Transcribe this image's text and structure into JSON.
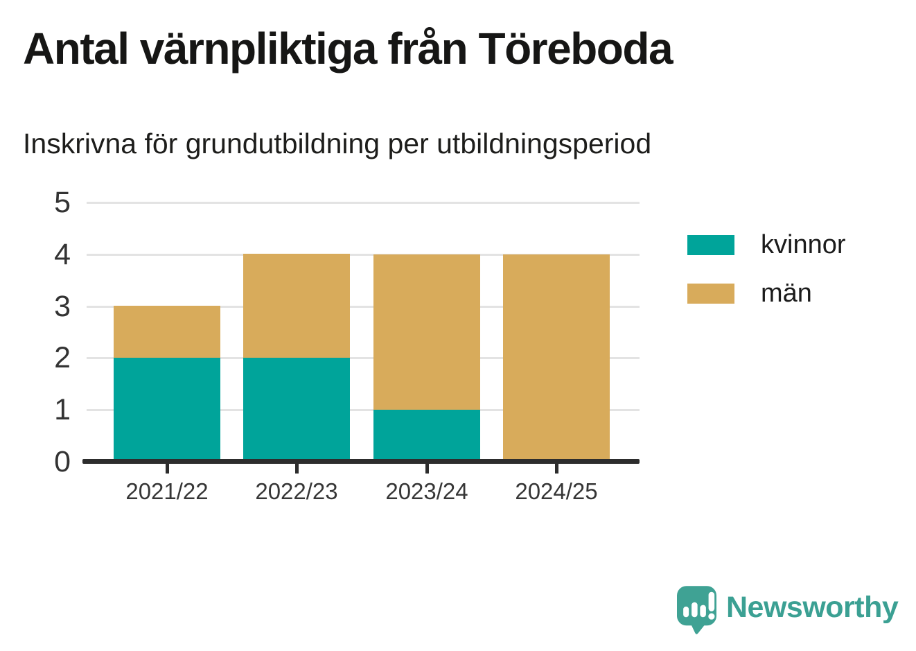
{
  "title": "Antal värnpliktiga från Töreboda",
  "subtitle": "Inskrivna för grundutbildning per utbildningsperiod",
  "chart_data": {
    "type": "bar",
    "stacked": true,
    "categories": [
      "2021/22",
      "2022/23",
      "2023/24",
      "2024/25"
    ],
    "series": [
      {
        "name": "kvinnor",
        "color": "#00a49a",
        "values": [
          2,
          2,
          1,
          0
        ]
      },
      {
        "name": "män",
        "color": "#d8ab5b",
        "values": [
          1,
          2,
          3,
          4
        ]
      }
    ],
    "totals": [
      3,
      4,
      4,
      4
    ],
    "ylim": [
      0,
      5
    ],
    "yticks": [
      0,
      1,
      2,
      3,
      4,
      5
    ],
    "grid": "horizontal",
    "legend_position": "right"
  },
  "colors": {
    "kvinnor": "#00a49a",
    "man": "#d8ab5b",
    "axis": "#2d2d2d",
    "gridline": "#e3e3e3",
    "brand_teal": "#3ba093"
  },
  "branding": {
    "wordmark": "Newsworthy",
    "logo_icon": "newsworthy-speech-bubble-chart-icon"
  }
}
